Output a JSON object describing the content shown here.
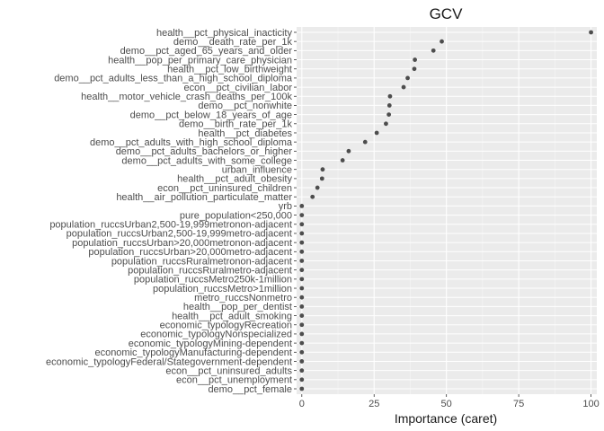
{
  "chart_data": {
    "type": "scatter",
    "title": "GCV",
    "xlabel": "Importance (caret)",
    "ylabel": "",
    "xlim": [
      -1.8,
      102
    ],
    "xticks": [
      0,
      25,
      50,
      75,
      100
    ],
    "grid": true,
    "colors": {
      "panel": "#ebebeb",
      "grid_major": "#ffffff",
      "point": "#4d4d4d"
    },
    "categories": [
      "health__pct_physical_inacticity",
      "demo__death_rate_per_1k",
      "demo__pct_aged_65_years_and_older",
      "health__pop_per_primary_care_physician",
      "health__pct_low_birthweight",
      "demo__pct_adults_less_than_a_high_school_diploma",
      "econ__pct_civilian_labor",
      "health__motor_vehicle_crash_deaths_per_100k",
      "demo__pct_nonwhite",
      "demo__pct_below_18_years_of_age",
      "demo__birth_rate_per_1k",
      "health__pct_diabetes",
      "demo__pct_adults_with_high_school_diploma",
      "demo__pct_adults_bachelors_or_higher",
      "demo__pct_adults_with_some_college",
      "urban_influence",
      "health__pct_adult_obesity",
      "econ__pct_uninsured_children",
      "health__air_pollution_particulate_matter",
      "yrb",
      "pure_population<250,000",
      "population_ruccsUrban2,500-19,999metronon-adjacent",
      "population_ruccsUrban2,500-19,999metro-adjacent",
      "population_ruccsUrban>20,000metronon-adjacent",
      "population_ruccsUrban>20,000metro-adjacent",
      "population_ruccsRuralmetronon-adjacent",
      "population_ruccsRuralmetro-adjacent",
      "population_ruccsMetro250k-1million",
      "population_ruccsMetro>1million",
      "metro_ruccsNonmetro",
      "health__pop_per_dentist",
      "health__pct_adult_smoking",
      "economic_typologyRecreation",
      "economic_typologyNonspecialized",
      "economic_typologyMining-dependent",
      "economic_typologyManufacturing-dependent",
      "economic_typologyFederal/Stategovernment-dependent",
      "econ__pct_uninsured_adults",
      "econ__pct_unemployment",
      "demo__pct_female"
    ],
    "values": [
      100,
      48.4,
      45.5,
      39.1,
      38.9,
      36.6,
      35.2,
      30.5,
      30.3,
      30.1,
      29.1,
      25.9,
      21.9,
      16.2,
      14.1,
      7.2,
      7.0,
      5.4,
      3.7,
      0,
      0,
      0,
      0,
      0,
      0,
      0,
      0,
      0,
      0,
      0,
      0,
      0,
      0,
      0,
      0,
      0,
      0,
      0,
      0,
      0
    ]
  }
}
